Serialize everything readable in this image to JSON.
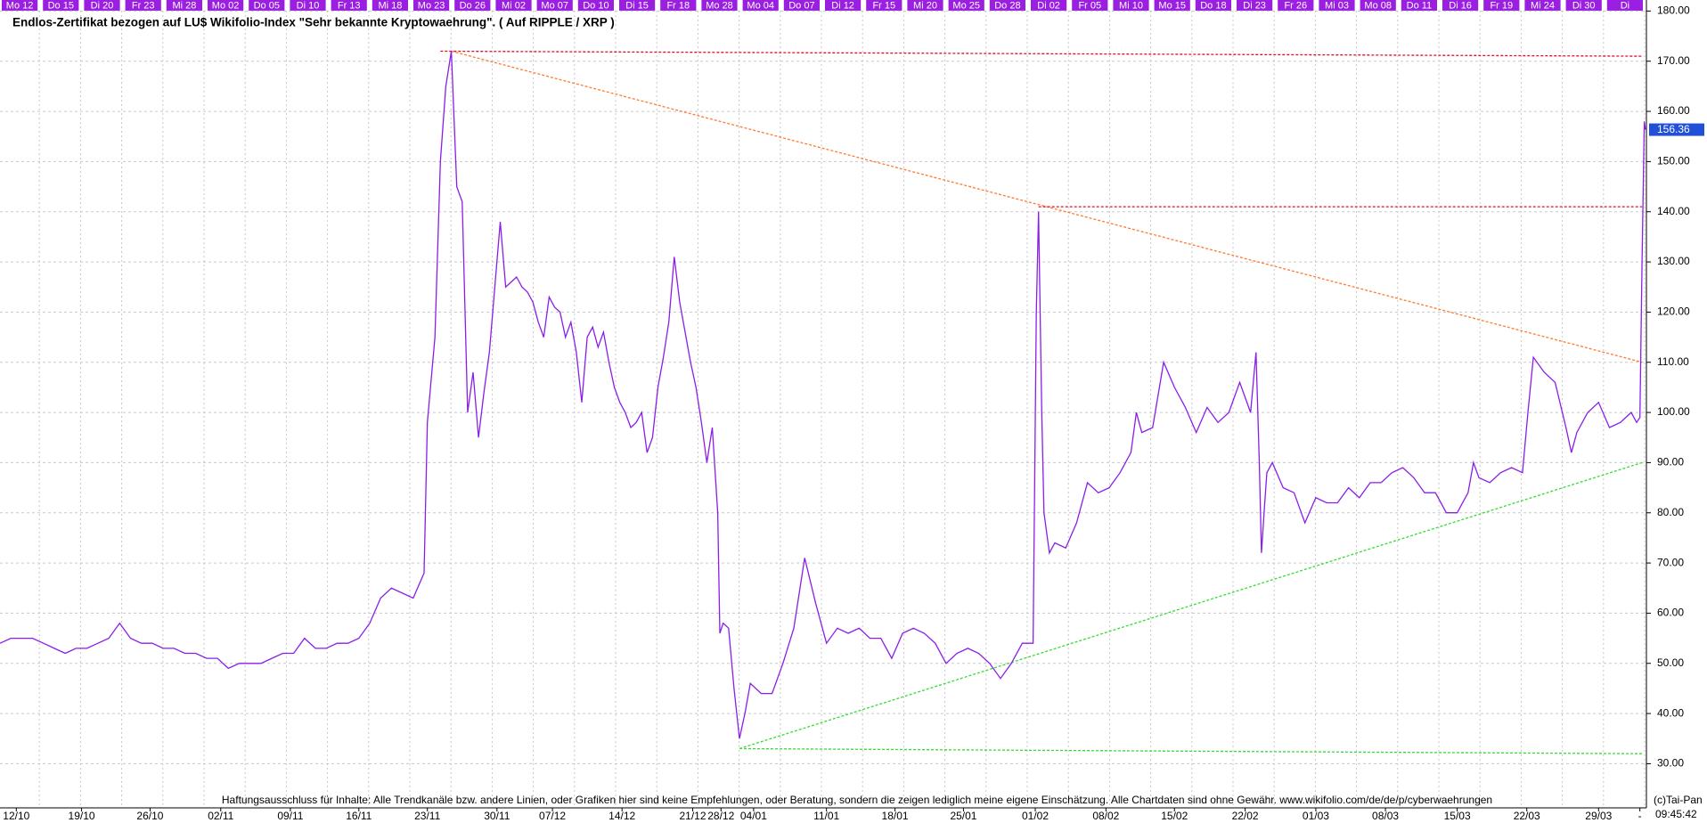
{
  "chart_data": {
    "type": "line",
    "title": "Endlos-Zertifikat bezogen auf LU$ Wikifolio-Index \"Sehr bekannte Kryptowaehrung\". ( Auf RIPPLE / XRP )",
    "disclaimer": "Haftungsausschluss für Inhalte: Alle Trendkanäle bzw. andere Linien, oder Grafiken hier sind keine Empfehlungen, oder Beratung, sondern die zeigen lediglich meine eigene Einschätzung. Alle Chartdaten sind ohne Gewähr.  www.wikifolio.com/de/de/p/cyberwaehrungen",
    "copyright": "(c)Tai-Pan",
    "time": "09:45:42",
    "top_labels": [
      "Mo 12",
      "Do 15",
      "Di 20",
      "Fr 23",
      "Mi 28",
      "Mo 02",
      "Do 05",
      "Di 10",
      "Fr 13",
      "Mi 18",
      "Mo 23",
      "Do 26",
      "Mi 02",
      "Mo 07",
      "Do 10",
      "Di 15",
      "Fr 18",
      "Mo 28",
      "Mo 04",
      "Do 07",
      "Di 12",
      "Fr 15",
      "Mi 20",
      "Mo 25",
      "Do 28",
      "Di 02",
      "Fr 05",
      "Mi 10",
      "Mo 15",
      "Do 18",
      "Di 23",
      "Fr 26",
      "Mi 03",
      "Mo 08",
      "Do 11",
      "Di 16",
      "Fr 19",
      "Mi 24",
      "Di 30",
      "Di"
    ],
    "color": "#8a1ee8",
    "x": [
      0,
      1,
      2,
      3,
      4,
      5,
      6,
      7,
      8,
      9,
      10,
      11,
      12,
      13,
      14,
      15,
      16,
      17,
      18,
      19,
      20,
      21,
      22,
      23,
      24,
      25,
      26,
      27,
      28,
      29,
      30,
      31,
      32,
      33,
      34,
      35,
      36,
      37,
      38,
      39,
      39.3,
      40,
      40.5,
      41,
      41.5,
      42,
      42.5,
      43,
      43.5,
      44,
      44.5,
      45,
      45.5,
      46,
      46.5,
      47,
      47.5,
      48,
      48.5,
      49,
      49.5,
      50,
      50.5,
      51,
      51.5,
      52,
      52.5,
      53,
      53.5,
      54,
      54.5,
      55,
      55.5,
      56,
      56.5,
      57,
      57.5,
      58,
      58.5,
      59,
      59.5,
      60,
      60.5,
      61,
      61.5,
      62,
      62.5,
      63,
      63.5,
      64,
      64.5,
      65,
      65.5,
      66,
      66.2,
      66.5,
      67,
      67.5,
      68,
      68.5,
      69,
      70,
      71,
      72,
      73,
      74,
      75,
      76,
      77,
      78,
      79,
      80,
      81,
      82,
      83,
      84,
      85,
      86,
      87,
      88,
      89,
      90,
      91,
      92,
      93,
      94,
      95,
      95.3,
      95.5,
      95.8,
      96,
      96.5,
      97,
      98,
      99,
      100,
      101,
      102,
      103,
      104,
      104.5,
      105,
      106,
      107,
      108,
      109,
      110,
      111,
      112,
      113,
      114,
      115,
      115.5,
      115.8,
      116,
      116.3,
      116.5,
      117,
      118,
      119,
      120,
      121,
      122,
      123,
      124,
      125,
      126,
      127,
      128,
      129,
      130,
      131,
      132,
      133,
      134,
      135,
      135.5,
      136,
      137,
      138,
      139,
      140,
      140.5,
      141,
      142,
      143,
      144,
      144.5,
      145,
      146,
      147,
      148,
      149,
      150,
      150.5,
      150.8,
      151,
      151.2,
      151.3
    ],
    "values": [
      54,
      55,
      55,
      55,
      54,
      53,
      52,
      53,
      53,
      54,
      55,
      58,
      55,
      54,
      54,
      53,
      53,
      52,
      52,
      51,
      51,
      49,
      50,
      50,
      50,
      51,
      52,
      52,
      55,
      53,
      53,
      54,
      54,
      55,
      58,
      63,
      65,
      64,
      63,
      68,
      98,
      115,
      150,
      165,
      172,
      145,
      142,
      100,
      108,
      95,
      104,
      112,
      125,
      138,
      125,
      126,
      127,
      125,
      124,
      122,
      118,
      115,
      123,
      121,
      120,
      115,
      118,
      112,
      102,
      115,
      117,
      113,
      116,
      110,
      105,
      102,
      100,
      97,
      98,
      100,
      92,
      95,
      105,
      111,
      118,
      131,
      122,
      116,
      110,
      105,
      98,
      90,
      97,
      80,
      56,
      58,
      57,
      45,
      35,
      40,
      46,
      44,
      44,
      50,
      57,
      71,
      62,
      54,
      57,
      56,
      57,
      55,
      55,
      51,
      56,
      57,
      56,
      54,
      50,
      52,
      53,
      52,
      50,
      47,
      50,
      54,
      54,
      120,
      140,
      100,
      80,
      72,
      74,
      73,
      78,
      86,
      84,
      85,
      88,
      92,
      100,
      96,
      97,
      110,
      105,
      101,
      96,
      101,
      98,
      100,
      106,
      100,
      112,
      90,
      72,
      82,
      88,
      90,
      85,
      84,
      78,
      83,
      82,
      82,
      85,
      83,
      86,
      86,
      88,
      89,
      87,
      84,
      84,
      80,
      80,
      84,
      90,
      87,
      86,
      88,
      89,
      88,
      100,
      111,
      108,
      106,
      97,
      92,
      96,
      100,
      102,
      97,
      98,
      100,
      98,
      99,
      130,
      158,
      156.36
    ],
    "trendlines": [
      {
        "color": "#ff7a30",
        "x": [
          41.5,
          151
        ],
        "values": [
          172,
          110
        ]
      },
      {
        "color": "#e0102a",
        "x": [
          40.5,
          151
        ],
        "values": [
          172,
          171
        ]
      },
      {
        "color": "#e0102a",
        "x": [
          95.5,
          151
        ],
        "values": [
          141,
          141
        ]
      },
      {
        "color": "#33dd33",
        "x": [
          68,
          151
        ],
        "values": [
          33,
          90
        ]
      },
      {
        "color": "#33dd33",
        "x": [
          68,
          151
        ],
        "values": [
          33,
          32
        ]
      }
    ],
    "xlim": [
      0,
      151.4
    ],
    "ylim": [
      21.2,
      182.2
    ],
    "xticks": [
      {
        "value": 1.5,
        "label": "12/10"
      },
      {
        "value": 7.5,
        "label": "19/10"
      },
      {
        "value": 13.8,
        "label": "26/10"
      },
      {
        "value": 20.3,
        "label": "02/11"
      },
      {
        "value": 26.7,
        "label": "09/11"
      },
      {
        "value": 33,
        "label": "16/11"
      },
      {
        "value": 39.3,
        "label": "23/11"
      },
      {
        "value": 45.7,
        "label": "30/11"
      },
      {
        "value": 50.8,
        "label": "07/12"
      },
      {
        "value": 57.2,
        "label": "14/12"
      },
      {
        "value": 63.7,
        "label": "21/12"
      },
      {
        "value": 66.3,
        "label": "28/12"
      },
      {
        "value": 69.3,
        "label": "04/01"
      },
      {
        "value": 76,
        "label": "11/01"
      },
      {
        "value": 82.3,
        "label": "18/01"
      },
      {
        "value": 88.6,
        "label": "25/01"
      },
      {
        "value": 95.2,
        "label": "01/02"
      },
      {
        "value": 101.7,
        "label": "08/02"
      },
      {
        "value": 108,
        "label": "15/02"
      },
      {
        "value": 114.5,
        "label": "22/02"
      },
      {
        "value": 121,
        "label": "01/03"
      },
      {
        "value": 127.4,
        "label": "08/03"
      },
      {
        "value": 134,
        "label": "15/03"
      },
      {
        "value": 140.4,
        "label": "22/03"
      },
      {
        "value": 147,
        "label": "29/03"
      },
      {
        "value": 150.8,
        "label": "-"
      }
    ],
    "yticks": [
      {
        "value": 30,
        "label": "30.00"
      },
      {
        "value": 40,
        "label": "40.00"
      },
      {
        "value": 50,
        "label": "50.00"
      },
      {
        "value": 60,
        "label": "60.00"
      },
      {
        "value": 70,
        "label": "70.00"
      },
      {
        "value": 80,
        "label": "80.00"
      },
      {
        "value": 90,
        "label": "90.00"
      },
      {
        "value": 100,
        "label": "100.00"
      },
      {
        "value": 110,
        "label": "110.00"
      },
      {
        "value": 120,
        "label": "120.00"
      },
      {
        "value": 130,
        "label": "130.00"
      },
      {
        "value": 140,
        "label": "140.00"
      },
      {
        "value": 150,
        "label": "150.00"
      },
      {
        "value": 160,
        "label": "160.00"
      },
      {
        "value": 170,
        "label": "170.00"
      },
      {
        "value": 180,
        "label": "180.00"
      }
    ],
    "grid": true
  }
}
